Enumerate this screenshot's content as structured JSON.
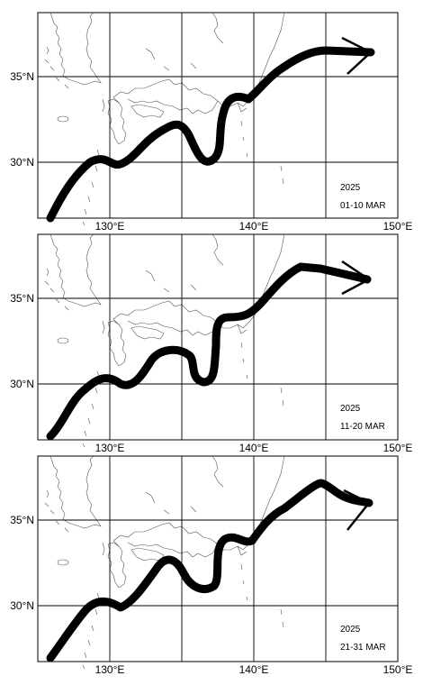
{
  "lat_labels": [
    "35°N",
    "30°N"
  ],
  "lon_labels": [
    "130°E",
    "140°E",
    "150°E"
  ],
  "panels": [
    {
      "year": "2025",
      "period": "01-10 MAR"
    },
    {
      "year": "2025",
      "period": "11-20 MAR"
    },
    {
      "year": "2025",
      "period": "21-31 MAR"
    }
  ],
  "colors": {
    "current_path": "#000000",
    "coastline": "#555555",
    "grid": "#000000"
  }
}
